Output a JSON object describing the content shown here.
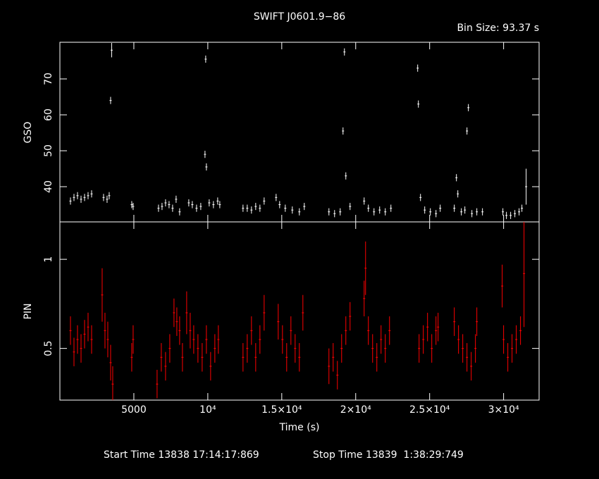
{
  "chart_data": [
    {
      "type": "scatter",
      "title": "SWIFT J0601.9−86",
      "annotation": "Bin Size: 93.37 s",
      "ylabel": "GSO",
      "color": "#ffffff",
      "x": [
        714,
        952,
        1190,
        1429,
        1667,
        1905,
        2143,
        2952,
        3190,
        3333,
        3429,
        3500,
        4857,
        4952,
        6667,
        6905,
        7143,
        7381,
        7619,
        7857,
        8095,
        8714,
        8952,
        9238,
        9524,
        9810,
        9857,
        9905,
        10095,
        10381,
        10667,
        10810,
        12381,
        12667,
        12952,
        13238,
        13524,
        13810,
        14619,
        14857,
        15238,
        15714,
        16190,
        16524,
        18190,
        18571,
        18952,
        19143,
        19238,
        19333,
        19619,
        20571,
        20857,
        21238,
        21619,
        22000,
        22381,
        24190,
        24238,
        24381,
        24667,
        25048,
        25429,
        25714,
        26667,
        26810,
        26905,
        27143,
        27381,
        27524,
        27619,
        27857,
        28190,
        28571,
        29952,
        30190,
        30476,
        30762,
        31048,
        31238,
        31524
      ],
      "values": [
        36,
        37,
        37.5,
        36.5,
        37,
        37.5,
        38,
        37,
        36.5,
        37.5,
        64,
        78,
        35,
        34.5,
        34,
        34.5,
        35.5,
        35,
        34,
        36.5,
        33,
        35.5,
        35,
        34,
        34.5,
        49,
        75.5,
        45.5,
        35.5,
        35,
        36,
        35,
        34,
        34,
        33.5,
        34.5,
        34,
        36,
        37,
        35,
        34,
        33.5,
        33,
        34.5,
        33,
        32.5,
        33,
        55.5,
        77.5,
        43,
        34.5,
        36,
        34,
        33,
        33.5,
        33,
        34,
        73,
        63,
        37,
        33.5,
        33,
        32.5,
        34,
        34,
        42.5,
        38,
        33,
        33.5,
        55.5,
        62,
        32.5,
        33,
        33,
        33,
        32,
        32,
        32.5,
        33,
        34,
        40
      ],
      "errors": [
        1,
        1,
        1,
        1,
        1,
        1,
        1,
        1,
        1,
        1,
        1,
        2,
        1,
        1,
        1,
        1,
        1,
        1,
        1,
        1,
        1,
        1,
        1,
        1,
        1,
        1,
        1,
        1,
        1,
        1,
        1,
        1,
        1,
        1,
        1,
        1,
        1,
        1,
        1,
        1,
        1,
        1,
        1,
        1,
        1,
        1,
        1,
        1,
        1,
        1,
        1,
        1,
        1,
        1,
        1,
        1,
        1,
        1,
        1,
        1,
        1,
        1,
        1,
        1,
        1,
        1,
        1,
        1,
        1,
        1,
        1,
        1,
        1,
        1,
        1,
        1,
        1,
        1,
        1,
        1,
        5
      ],
      "xlim": [
        0,
        32400
      ],
      "xticks": [
        5000,
        10000,
        15000,
        20000,
        25000,
        30000
      ],
      "show_xtick_labels": false,
      "ylim": [
        30.2,
        80.2
      ],
      "yticks": [
        40,
        50,
        60,
        70
      ]
    },
    {
      "type": "scatter",
      "ylabel": "PIN",
      "xlabel": "Time (s)",
      "color": "#ff0000",
      "annotations": [
        "Start Time 13838 17:14:17:869",
        "Stop Time 13839  1:38:29:749"
      ],
      "x": [
        714,
        952,
        1190,
        1429,
        1667,
        1905,
        2143,
        2857,
        3048,
        3238,
        3429,
        3571,
        4857,
        4952,
        6571,
        6857,
        7143,
        7429,
        7714,
        7905,
        8095,
        8286,
        8571,
        8810,
        9048,
        9333,
        9619,
        9905,
        10190,
        10476,
        10714,
        12381,
        12667,
        12952,
        13238,
        13524,
        13810,
        14762,
        15048,
        15333,
        15619,
        15905,
        16190,
        16429,
        18190,
        18476,
        18762,
        19048,
        19333,
        19619,
        20571,
        20667,
        20857,
        21143,
        21429,
        21714,
        22000,
        22286,
        24286,
        24571,
        24857,
        25143,
        25429,
        25571,
        26667,
        26952,
        27238,
        27524,
        27810,
        28095,
        28190,
        29905,
        30000,
        30286,
        30571,
        30857,
        31143,
        31381
      ],
      "values": [
        0.6,
        0.48,
        0.55,
        0.5,
        0.58,
        0.62,
        0.55,
        0.8,
        0.6,
        0.55,
        0.42,
        0.3,
        0.45,
        0.55,
        0.3,
        0.45,
        0.4,
        0.5,
        0.7,
        0.65,
        0.6,
        0.45,
        0.7,
        0.6,
        0.55,
        0.5,
        0.45,
        0.55,
        0.4,
        0.5,
        0.55,
        0.45,
        0.5,
        0.6,
        0.45,
        0.55,
        0.7,
        0.65,
        0.55,
        0.45,
        0.6,
        0.5,
        0.45,
        0.7,
        0.4,
        0.45,
        0.35,
        0.5,
        0.6,
        0.68,
        0.78,
        0.95,
        0.6,
        0.5,
        0.45,
        0.55,
        0.5,
        0.6,
        0.5,
        0.55,
        0.62,
        0.5,
        0.6,
        0.62,
        0.65,
        0.55,
        0.5,
        0.45,
        0.4,
        0.5,
        0.65,
        0.85,
        0.55,
        0.45,
        0.5,
        0.55,
        0.6,
        0.92
      ],
      "errors": [
        0.08,
        0.08,
        0.08,
        0.08,
        0.08,
        0.08,
        0.08,
        0.15,
        0.1,
        0.1,
        0.1,
        0.1,
        0.08,
        0.08,
        0.08,
        0.08,
        0.08,
        0.08,
        0.08,
        0.08,
        0.08,
        0.08,
        0.12,
        0.1,
        0.08,
        0.08,
        0.08,
        0.08,
        0.08,
        0.08,
        0.08,
        0.08,
        0.08,
        0.08,
        0.08,
        0.08,
        0.1,
        0.1,
        0.08,
        0.08,
        0.08,
        0.08,
        0.08,
        0.1,
        0.1,
        0.08,
        0.08,
        0.08,
        0.08,
        0.08,
        0.1,
        0.15,
        0.08,
        0.08,
        0.08,
        0.08,
        0.08,
        0.08,
        0.08,
        0.08,
        0.08,
        0.08,
        0.08,
        0.08,
        0.08,
        0.08,
        0.08,
        0.08,
        0.08,
        0.08,
        0.08,
        0.12,
        0.08,
        0.08,
        0.08,
        0.08,
        0.08,
        0.3
      ],
      "xlim": [
        0,
        32400
      ],
      "xticks": [
        5000,
        {
          "value": 10000,
          "label": "10⁴"
        },
        {
          "value": 15000,
          "label": "1.5×10⁴"
        },
        {
          "value": 20000,
          "label": "2×10⁴"
        },
        {
          "value": 25000,
          "label": "2.5×10⁴"
        },
        {
          "value": 30000,
          "label": "3×10⁴"
        }
      ],
      "ylim": [
        0.21,
        1.21
      ],
      "yticks": [
        0.5,
        1
      ]
    }
  ]
}
